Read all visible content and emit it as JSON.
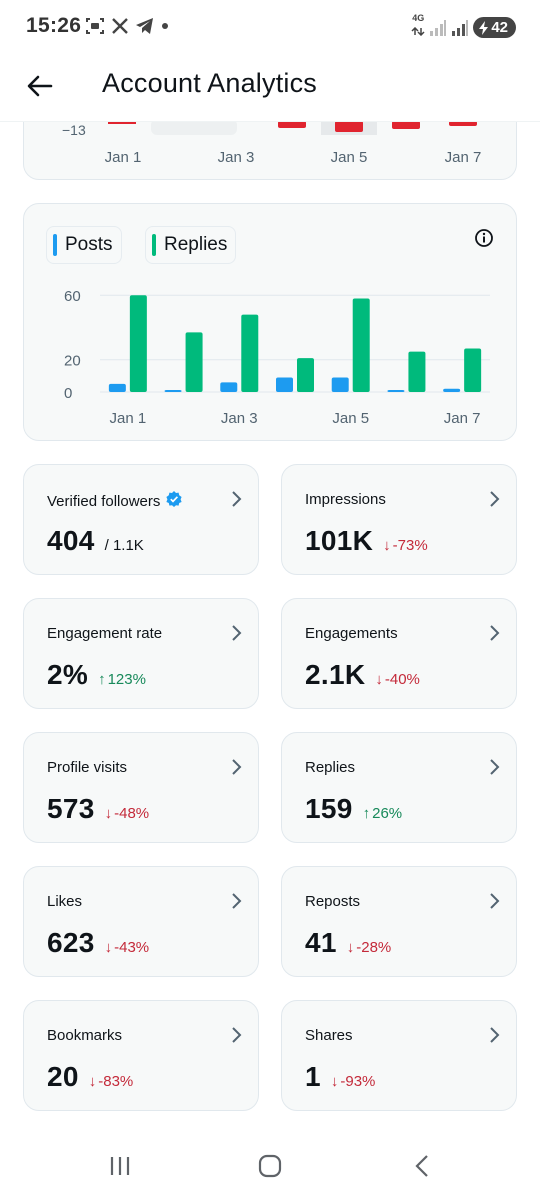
{
  "status_bar": {
    "time": "15:26",
    "network": "4G",
    "battery": "42"
  },
  "header": {
    "title": "Account Analytics"
  },
  "top_chart": {
    "ytick": "−13",
    "xticks": [
      "Jan 1",
      "Jan 3",
      "Jan 5",
      "Jan 7"
    ]
  },
  "legend": {
    "posts": "Posts",
    "replies": "Replies"
  },
  "colors": {
    "posts": "#1d9bf0",
    "replies": "#00ba7c",
    "down": "#c42a3a",
    "up": "#17895a",
    "verified": "#1d9bf0"
  },
  "chart_data": {
    "type": "bar",
    "categories": [
      "Jan 1",
      "Jan 2",
      "Jan 3",
      "Jan 4",
      "Jan 5",
      "Jan 6",
      "Jan 7"
    ],
    "xticks": [
      "Jan 1",
      "Jan 3",
      "Jan 5",
      "Jan 7"
    ],
    "yticks": [
      0,
      20,
      60
    ],
    "ylim": [
      0,
      62
    ],
    "series": [
      {
        "name": "Posts",
        "values": [
          5,
          0,
          6,
          9,
          9,
          1,
          2
        ]
      },
      {
        "name": "Replies",
        "values": [
          60,
          37,
          48,
          21,
          58,
          25,
          27
        ]
      }
    ],
    "grid": true
  },
  "stats": [
    {
      "label": "Verified followers",
      "value": "404",
      "sub": "/ 1.1K",
      "verified": true
    },
    {
      "label": "Impressions",
      "value": "101K",
      "delta": "-73%",
      "dir": "down"
    },
    {
      "label": "Engagement rate",
      "value": "2%",
      "delta": "123%",
      "dir": "up"
    },
    {
      "label": "Engagements",
      "value": "2.1K",
      "delta": "-40%",
      "dir": "down"
    },
    {
      "label": "Profile visits",
      "value": "573",
      "delta": "-48%",
      "dir": "down"
    },
    {
      "label": "Replies",
      "value": "159",
      "delta": "26%",
      "dir": "up"
    },
    {
      "label": "Likes",
      "value": "623",
      "delta": "-43%",
      "dir": "down"
    },
    {
      "label": "Reposts",
      "value": "41",
      "delta": "-28%",
      "dir": "down"
    },
    {
      "label": "Bookmarks",
      "value": "20",
      "delta": "-83%",
      "dir": "down"
    },
    {
      "label": "Shares",
      "value": "1",
      "delta": "-93%",
      "dir": "down"
    }
  ]
}
